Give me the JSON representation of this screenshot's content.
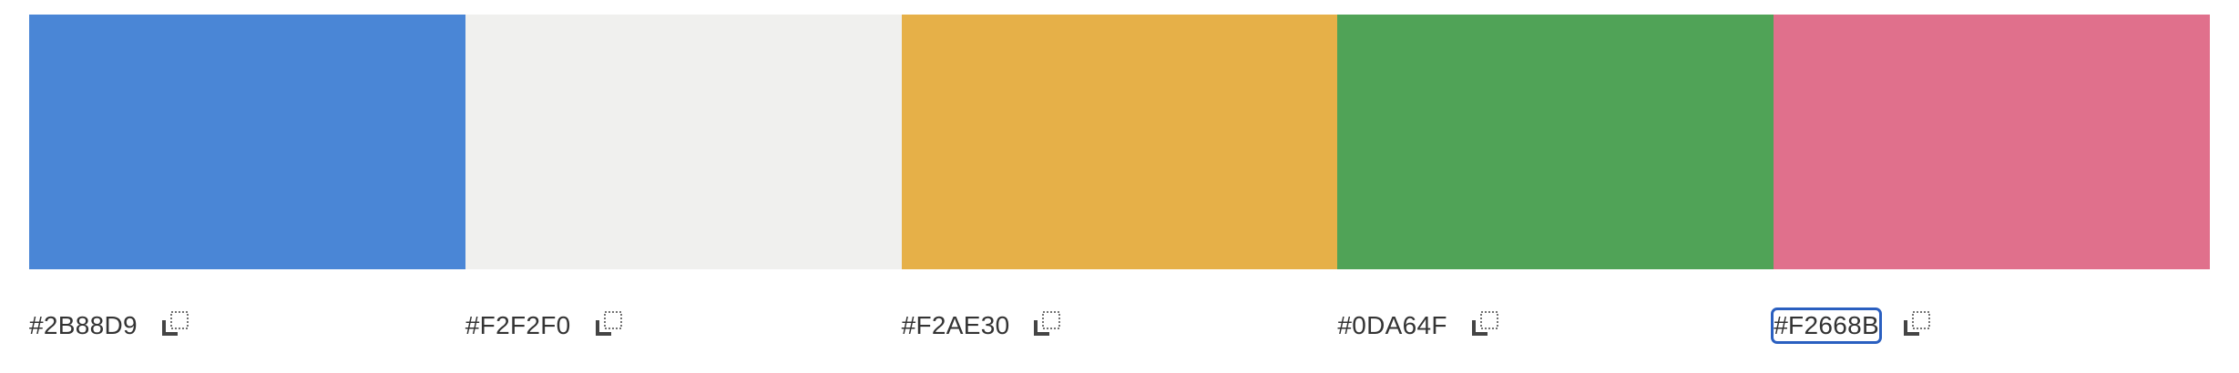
{
  "palette": {
    "swatches": [
      {
        "hex": "#2B88D9",
        "fill": "#4a86d6",
        "selected": false,
        "copy_icon": "copy-icon"
      },
      {
        "hex": "#F2F2F0",
        "fill": "#f0f0ee",
        "selected": false,
        "copy_icon": "copy-icon"
      },
      {
        "hex": "#F2AE30",
        "fill": "#e6b048",
        "selected": false,
        "copy_icon": "copy-icon"
      },
      {
        "hex": "#0DA64F",
        "fill": "#50a357",
        "selected": false,
        "copy_icon": "copy-icon"
      },
      {
        "hex": "#F2668B",
        "fill": "#e0708c",
        "selected": true,
        "copy_icon": "copy-icon"
      }
    ]
  },
  "colors": {
    "selection_border": "#2a5fc0",
    "text": "#333333"
  }
}
